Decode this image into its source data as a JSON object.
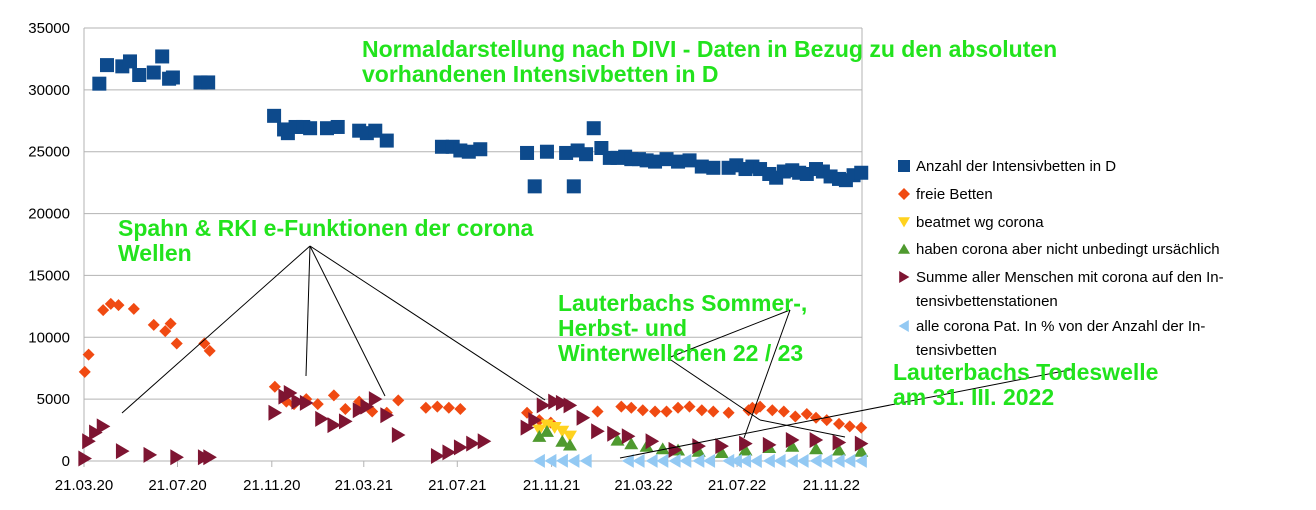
{
  "chart_data": {
    "type": "scatter",
    "title": "",
    "xlabel": "",
    "ylabel": "",
    "ylim": [
      0,
      35000
    ],
    "y_ticks": [
      "0",
      "5000",
      "10000",
      "15000",
      "20000",
      "25000",
      "30000",
      "35000"
    ],
    "x_ticks": [
      "21.03.20",
      "21.07.20",
      "21.11.20",
      "21.03.21",
      "21.07.21",
      "21.11.21",
      "21.03.22",
      "21.07.22",
      "21.11.22"
    ],
    "grid": "horizontal",
    "legend_position": "right",
    "colors": {
      "intensiv": "#0d4a8c",
      "frei": "#f04a12",
      "beatmet": "#ffd21f",
      "corona": "#4f9a2f",
      "summe": "#7e1532",
      "prozent": "#93c9f3",
      "annotation": "#22e31d"
    },
    "series": [
      {
        "name": "Anzahl der Intensivbetten in D",
        "marker": "square",
        "x": [
          "2020-04-10",
          "2020-04-20",
          "2020-05-10",
          "2020-05-20",
          "2020-06-01",
          "2020-06-20",
          "2020-07-01",
          "2020-07-10",
          "2020-07-15",
          "2020-08-20",
          "2020-08-30",
          "2020-11-24",
          "2020-12-07",
          "2020-12-12",
          "2020-12-22",
          "2021-01-01",
          "2021-01-10",
          "2021-02-01",
          "2021-02-15",
          "2021-03-15",
          "2021-03-25",
          "2021-04-05",
          "2021-04-20",
          "2021-07-01",
          "2021-07-15",
          "2021-07-25",
          "2021-08-05",
          "2021-08-20",
          "2021-10-20",
          "2021-10-30",
          "2021-11-15",
          "2021-12-10",
          "2021-12-20",
          "2021-12-25",
          "2022-01-05",
          "2022-01-15",
          "2022-01-25",
          "2022-02-05",
          "2022-02-15",
          "2022-02-25",
          "2022-03-05",
          "2022-03-15",
          "2022-03-25",
          "2022-04-05",
          "2022-04-20",
          "2022-05-05",
          "2022-05-20",
          "2022-06-05",
          "2022-06-20",
          "2022-07-10",
          "2022-07-20",
          "2022-08-01",
          "2022-08-10",
          "2022-08-20",
          "2022-09-01",
          "2022-09-10",
          "2022-09-20",
          "2022-10-01",
          "2022-10-10",
          "2022-10-20",
          "2022-11-01",
          "2022-11-10",
          "2022-11-20",
          "2022-12-01",
          "2022-12-10",
          "2022-12-20",
          "2022-12-30"
        ],
        "values": [
          30500,
          32000,
          31900,
          32300,
          31200,
          31400,
          32700,
          30900,
          31000,
          30600,
          30600,
          27900,
          26800,
          26500,
          27000,
          27000,
          26900,
          26900,
          27000,
          26700,
          26500,
          26700,
          25900,
          25400,
          25400,
          25100,
          25000,
          25200,
          24900,
          22200,
          25000,
          24900,
          22200,
          25100,
          24800,
          26900,
          25300,
          24500,
          24500,
          24600,
          24400,
          24400,
          24300,
          24200,
          24400,
          24200,
          24300,
          23800,
          23700,
          23700,
          23900,
          23600,
          23800,
          23600,
          23200,
          22900,
          23400,
          23500,
          23300,
          23200,
          23600,
          23400,
          23000,
          22800,
          22700,
          23100,
          23300
        ]
      },
      {
        "name": "freie Betten",
        "marker": "diamond",
        "x": [
          "2020-03-22",
          "2020-03-27",
          "2020-04-15",
          "2020-04-25",
          "2020-05-05",
          "2020-05-25",
          "2020-06-20",
          "2020-07-05",
          "2020-07-12",
          "2020-07-20",
          "2020-08-25",
          "2020-09-01",
          "2020-11-25",
          "2020-12-10",
          "2020-12-20",
          "2021-01-05",
          "2021-01-20",
          "2021-02-10",
          "2021-02-25",
          "2021-03-15",
          "2021-04-01",
          "2021-04-20",
          "2021-05-05",
          "2021-06-10",
          "2021-06-25",
          "2021-07-10",
          "2021-07-25",
          "2021-10-20",
          "2021-11-05",
          "2021-11-20",
          "2022-01-20",
          "2022-02-20",
          "2022-03-05",
          "2022-03-20",
          "2022-04-05",
          "2022-04-20",
          "2022-05-05",
          "2022-05-20",
          "2022-06-05",
          "2022-06-20",
          "2022-07-10",
          "2022-08-05",
          "2022-08-10",
          "2022-08-15",
          "2022-08-20",
          "2022-09-05",
          "2022-09-20",
          "2022-10-05",
          "2022-10-20",
          "2022-11-01",
          "2022-11-15",
          "2022-12-01",
          "2022-12-15",
          "2022-12-30"
        ],
        "values": [
          7200,
          8600,
          12200,
          12700,
          12600,
          12300,
          11000,
          10500,
          11100,
          9500,
          9500,
          8900,
          6000,
          4800,
          4600,
          5000,
          4600,
          5300,
          4200,
          4800,
          4000,
          3900,
          4900,
          4300,
          4400,
          4300,
          4200,
          3900,
          3300,
          3100,
          4000,
          4400,
          4300,
          4100,
          4000,
          4000,
          4300,
          4400,
          4100,
          4000,
          3900,
          4100,
          4300,
          4200,
          4400,
          4100,
          4000,
          3600,
          3800,
          3500,
          3300,
          3000,
          2800,
          2700
        ]
      },
      {
        "name": "beatmet wg corona",
        "marker": "triangle-down",
        "x": [
          "2021-11-05",
          "2021-11-15",
          "2021-11-25",
          "2021-12-05",
          "2021-12-15"
        ],
        "values": [
          2500,
          2900,
          2700,
          2400,
          2000
        ]
      },
      {
        "name": "haben corona aber nicht unbedingt ursächlich",
        "marker": "triangle-up",
        "x": [
          "2021-11-05",
          "2021-11-15",
          "2021-12-05",
          "2021-12-15",
          "2022-02-15",
          "2022-03-05",
          "2022-03-25",
          "2022-04-15",
          "2022-05-05",
          "2022-06-01",
          "2022-07-01",
          "2022-08-01",
          "2022-09-01",
          "2022-10-01",
          "2022-11-01",
          "2022-12-01",
          "2022-12-30"
        ],
        "values": [
          2000,
          2400,
          1600,
          1300,
          1700,
          1400,
          1200,
          1000,
          900,
          800,
          700,
          900,
          1100,
          1200,
          1000,
          900,
          800
        ]
      },
      {
        "name": "Summe aller Menschen mit corona auf den Intensivbettenstationen",
        "marker": "triangle-right",
        "x": [
          "2020-03-22",
          "2020-03-27",
          "2020-04-05",
          "2020-04-15",
          "2020-05-10",
          "2020-06-15",
          "2020-07-20",
          "2020-08-25",
          "2020-09-01",
          "2020-11-25",
          "2020-12-08",
          "2020-12-15",
          "2020-12-25",
          "2021-01-05",
          "2021-01-25",
          "2021-02-10",
          "2021-02-25",
          "2021-03-15",
          "2021-03-25",
          "2021-04-05",
          "2021-04-20",
          "2021-05-05",
          "2021-06-25",
          "2021-07-10",
          "2021-07-25",
          "2021-08-10",
          "2021-08-25",
          "2021-10-20",
          "2021-10-30",
          "2021-11-10",
          "2021-11-25",
          "2021-12-05",
          "2021-12-15",
          "2022-01-01",
          "2022-01-20",
          "2022-02-10",
          "2022-03-01",
          "2022-04-01",
          "2022-05-01",
          "2022-06-01",
          "2022-07-01",
          "2022-08-01",
          "2022-09-01",
          "2022-10-01",
          "2022-11-01",
          "2022-12-01",
          "2022-12-30"
        ],
        "values": [
          200,
          1600,
          2300,
          2800,
          800,
          500,
          300,
          300,
          300,
          3900,
          5200,
          5500,
          4800,
          4700,
          3400,
          2900,
          3200,
          4100,
          4400,
          5000,
          3700,
          2100,
          400,
          700,
          1100,
          1400,
          1600,
          2700,
          3300,
          4500,
          4800,
          4700,
          4500,
          3500,
          2400,
          2200,
          2000,
          1600,
          900,
          1200,
          1200,
          1400,
          1300,
          1700,
          1700,
          1500,
          1400
        ]
      },
      {
        "name": "alle corona Pat. In % von der Anzahl der Intensivbetten",
        "marker": "triangle-left",
        "x": [
          "2021-11-05",
          "2021-11-20",
          "2021-12-05",
          "2021-12-20",
          "2022-01-05",
          "2022-03-01",
          "2022-03-15",
          "2022-04-01",
          "2022-04-15",
          "2022-05-01",
          "2022-05-15",
          "2022-06-01",
          "2022-06-15",
          "2022-07-10",
          "2022-07-20",
          "2022-08-01",
          "2022-08-15",
          "2022-09-01",
          "2022-09-15",
          "2022-10-01",
          "2022-10-15",
          "2022-11-01",
          "2022-11-15",
          "2022-12-01",
          "2022-12-15",
          "2022-12-30"
        ],
        "values": [
          15,
          15,
          18,
          14,
          12,
          10,
          10,
          10,
          9,
          8,
          8,
          7,
          6,
          6,
          5,
          5,
          5,
          6,
          6,
          6,
          7,
          6,
          6,
          6,
          6,
          6
        ]
      }
    ],
    "legend": [
      {
        "lines": [
          "Anzahl der Intensivbetten in D"
        ]
      },
      {
        "lines": [
          "freie Betten"
        ]
      },
      {
        "lines": [
          "beatmet wg corona"
        ]
      },
      {
        "lines": [
          "haben corona aber nicht unbedingt ursächlich"
        ]
      },
      {
        "lines": [
          "Summe aller Menschen mit corona auf den In-",
          "tensivbettenstationen"
        ]
      },
      {
        "lines": [
          "alle corona Pat. In % von der Anzahl der In-",
          "tensivbetten"
        ]
      }
    ],
    "annotations": [
      {
        "id": "divi",
        "lines": [
          "Normaldarstellung nach DIVI - Daten in Bezug zu den absoluten",
          "vorhandenen Intensivbetten in D"
        ]
      },
      {
        "id": "spahn",
        "lines": [
          "Spahn & RKI e-Funktionen der corona",
          "Wellen"
        ]
      },
      {
        "id": "sommer",
        "lines": [
          "Lauterbachs Sommer-,",
          "Herbst- und",
          "Winterwellchen 22 / 23"
        ]
      },
      {
        "id": "todes",
        "lines": [
          "Lauterbachs Todeswelle",
          "am 31. III. 2022"
        ]
      }
    ]
  }
}
